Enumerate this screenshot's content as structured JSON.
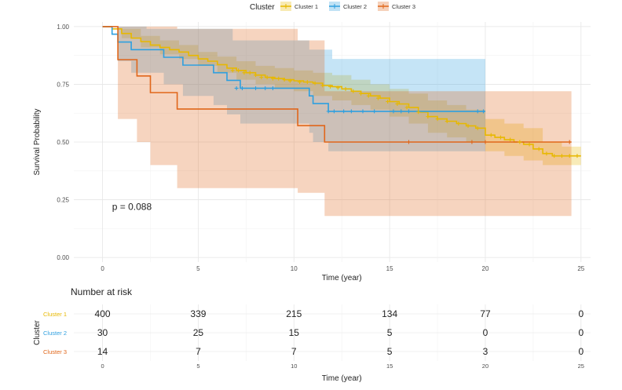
{
  "chart_data": {
    "type": "line",
    "subtype": "kaplan-meier",
    "legend": {
      "title": "Cluster",
      "placement": "top",
      "entries": [
        "Cluster 1",
        "Cluster 2",
        "Cluster 3"
      ]
    },
    "xlabel": "Time (year)",
    "ylabel": "Survival Probability",
    "xlim": [
      -1.5,
      25.5
    ],
    "ylim": [
      -0.02,
      1.02
    ],
    "x_ticks": [
      "0",
      "5",
      "10",
      "15",
      "20",
      "25"
    ],
    "y_ticks": [
      "0.00",
      "0.25",
      "0.50",
      "0.75",
      "1.00"
    ],
    "annotation": "p = 0.088",
    "colors": {
      "Cluster 1": "#E7B800",
      "Cluster 2": "#2E9FDF",
      "Cluster 3": "#E0661A"
    },
    "series": [
      {
        "name": "Cluster 1",
        "steps": [
          [
            0,
            1.0
          ],
          [
            0.5,
            0.99
          ],
          [
            1.0,
            0.97
          ],
          [
            1.5,
            0.95
          ],
          [
            2.0,
            0.935
          ],
          [
            2.5,
            0.92
          ],
          [
            3.0,
            0.91
          ],
          [
            3.5,
            0.9
          ],
          [
            4.0,
            0.89
          ],
          [
            4.5,
            0.875
          ],
          [
            5.0,
            0.86
          ],
          [
            5.5,
            0.85
          ],
          [
            6.0,
            0.835
          ],
          [
            6.5,
            0.82
          ],
          [
            7.0,
            0.81
          ],
          [
            7.5,
            0.8
          ],
          [
            8.0,
            0.79
          ],
          [
            8.5,
            0.78
          ],
          [
            9.0,
            0.775
          ],
          [
            9.5,
            0.77
          ],
          [
            10.0,
            0.765
          ],
          [
            10.5,
            0.76
          ],
          [
            11.0,
            0.755
          ],
          [
            11.5,
            0.745
          ],
          [
            12.0,
            0.74
          ],
          [
            12.5,
            0.73
          ],
          [
            13.0,
            0.72
          ],
          [
            13.5,
            0.71
          ],
          [
            14.0,
            0.7
          ],
          [
            14.5,
            0.69
          ],
          [
            15.0,
            0.675
          ],
          [
            15.5,
            0.665
          ],
          [
            16.0,
            0.65
          ],
          [
            16.5,
            0.63
          ],
          [
            17.0,
            0.61
          ],
          [
            17.5,
            0.6
          ],
          [
            18.0,
            0.59
          ],
          [
            18.5,
            0.58
          ],
          [
            19.0,
            0.57
          ],
          [
            19.5,
            0.56
          ],
          [
            20.0,
            0.53
          ],
          [
            20.5,
            0.52
          ],
          [
            21.0,
            0.51
          ],
          [
            21.5,
            0.5
          ],
          [
            22.0,
            0.49
          ],
          [
            22.5,
            0.47
          ],
          [
            23.0,
            0.45
          ],
          [
            23.5,
            0.44
          ],
          [
            24.0,
            0.44
          ],
          [
            25.0,
            0.44
          ]
        ],
        "ci_lower": [
          [
            0,
            1.0
          ],
          [
            1.0,
            0.95
          ],
          [
            2.0,
            0.91
          ],
          [
            3.0,
            0.88
          ],
          [
            4.0,
            0.86
          ],
          [
            5.0,
            0.83
          ],
          [
            6.0,
            0.8
          ],
          [
            7.0,
            0.77
          ],
          [
            8.0,
            0.75
          ],
          [
            9.0,
            0.73
          ],
          [
            10.0,
            0.72
          ],
          [
            11.0,
            0.7
          ],
          [
            12.0,
            0.68
          ],
          [
            13.0,
            0.66
          ],
          [
            14.0,
            0.64
          ],
          [
            15.0,
            0.61
          ],
          [
            16.0,
            0.58
          ],
          [
            17.0,
            0.54
          ],
          [
            18.0,
            0.52
          ],
          [
            19.0,
            0.5
          ],
          [
            20.0,
            0.46
          ],
          [
            21.0,
            0.44
          ],
          [
            22.0,
            0.42
          ],
          [
            23.0,
            0.4
          ],
          [
            24.0,
            0.4
          ],
          [
            25.0,
            0.4
          ]
        ],
        "ci_upper": [
          [
            0,
            1.0
          ],
          [
            1.0,
            0.99
          ],
          [
            2.0,
            0.96
          ],
          [
            3.0,
            0.94
          ],
          [
            4.0,
            0.92
          ],
          [
            5.0,
            0.89
          ],
          [
            6.0,
            0.87
          ],
          [
            7.0,
            0.85
          ],
          [
            8.0,
            0.83
          ],
          [
            9.0,
            0.82
          ],
          [
            10.0,
            0.81
          ],
          [
            11.0,
            0.8
          ],
          [
            12.0,
            0.79
          ],
          [
            13.0,
            0.77
          ],
          [
            14.0,
            0.75
          ],
          [
            15.0,
            0.73
          ],
          [
            16.0,
            0.71
          ],
          [
            17.0,
            0.68
          ],
          [
            18.0,
            0.66
          ],
          [
            19.0,
            0.64
          ],
          [
            20.0,
            0.6
          ],
          [
            21.0,
            0.58
          ],
          [
            22.0,
            0.56
          ],
          [
            23.0,
            0.5
          ],
          [
            24.0,
            0.48
          ],
          [
            25.0,
            0.48
          ]
        ],
        "censored": [
          [
            6.8,
            0.81
          ],
          [
            7.1,
            0.81
          ],
          [
            7.4,
            0.8
          ],
          [
            7.7,
            0.8
          ],
          [
            8.0,
            0.79
          ],
          [
            8.3,
            0.78
          ],
          [
            8.6,
            0.78
          ],
          [
            8.9,
            0.775
          ],
          [
            9.2,
            0.775
          ],
          [
            9.5,
            0.77
          ],
          [
            9.8,
            0.765
          ],
          [
            10.3,
            0.76
          ],
          [
            10.7,
            0.76
          ],
          [
            11.1,
            0.755
          ],
          [
            11.5,
            0.745
          ],
          [
            11.9,
            0.74
          ],
          [
            12.3,
            0.735
          ],
          [
            12.7,
            0.73
          ],
          [
            13.1,
            0.72
          ],
          [
            13.5,
            0.71
          ],
          [
            13.9,
            0.7
          ],
          [
            14.4,
            0.69
          ],
          [
            14.9,
            0.675
          ],
          [
            15.4,
            0.665
          ],
          [
            15.9,
            0.65
          ],
          [
            16.5,
            0.63
          ],
          [
            17.0,
            0.61
          ],
          [
            17.5,
            0.6
          ],
          [
            18.0,
            0.59
          ],
          [
            18.6,
            0.58
          ],
          [
            19.1,
            0.57
          ],
          [
            19.6,
            0.56
          ],
          [
            20.3,
            0.53
          ],
          [
            20.8,
            0.52
          ],
          [
            21.3,
            0.51
          ],
          [
            21.8,
            0.5
          ],
          [
            22.3,
            0.49
          ],
          [
            22.8,
            0.47
          ],
          [
            23.2,
            0.45
          ],
          [
            23.6,
            0.44
          ],
          [
            24.0,
            0.44
          ],
          [
            24.4,
            0.44
          ],
          [
            24.8,
            0.44
          ]
        ]
      },
      {
        "name": "Cluster 2",
        "steps": [
          [
            0,
            1.0
          ],
          [
            0.5,
            0.967
          ],
          [
            0.8,
            0.933
          ],
          [
            1.5,
            0.9
          ],
          [
            3.2,
            0.867
          ],
          [
            4.2,
            0.833
          ],
          [
            5.8,
            0.8
          ],
          [
            6.5,
            0.767
          ],
          [
            7.2,
            0.733
          ],
          [
            10.8,
            0.7
          ],
          [
            11.0,
            0.667
          ],
          [
            11.8,
            0.633
          ],
          [
            20.0,
            0.633
          ]
        ],
        "ci_lower": [
          [
            0,
            1.0
          ],
          [
            0.8,
            0.85
          ],
          [
            1.5,
            0.8
          ],
          [
            3.2,
            0.75
          ],
          [
            4.2,
            0.7
          ],
          [
            5.8,
            0.66
          ],
          [
            6.5,
            0.62
          ],
          [
            7.2,
            0.58
          ],
          [
            10.8,
            0.54
          ],
          [
            11.0,
            0.5
          ],
          [
            11.8,
            0.46
          ],
          [
            20.0,
            0.46
          ]
        ],
        "ci_upper": [
          [
            0,
            1.0
          ],
          [
            2.3,
            0.99
          ],
          [
            5.2,
            0.99
          ],
          [
            6.8,
            0.94
          ],
          [
            10.8,
            0.9
          ],
          [
            12.0,
            0.86
          ],
          [
            20.0,
            0.86
          ]
        ],
        "censored": [
          [
            7.0,
            0.733
          ],
          [
            7.3,
            0.733
          ],
          [
            8.0,
            0.733
          ],
          [
            8.5,
            0.733
          ],
          [
            8.9,
            0.733
          ],
          [
            11.8,
            0.633
          ],
          [
            12.1,
            0.633
          ],
          [
            12.6,
            0.633
          ],
          [
            13.0,
            0.633
          ],
          [
            13.6,
            0.633
          ],
          [
            14.2,
            0.633
          ],
          [
            15.2,
            0.633
          ],
          [
            15.6,
            0.633
          ],
          [
            16.0,
            0.633
          ],
          [
            19.6,
            0.633
          ],
          [
            19.9,
            0.633
          ]
        ]
      },
      {
        "name": "Cluster 3",
        "steps": [
          [
            0,
            1.0
          ],
          [
            0.8,
            0.857
          ],
          [
            1.8,
            0.786
          ],
          [
            2.5,
            0.714
          ],
          [
            3.9,
            0.643
          ],
          [
            10.2,
            0.571
          ],
          [
            11.6,
            0.5
          ],
          [
            24.5,
            0.5
          ]
        ],
        "ci_lower": [
          [
            0,
            1.0
          ],
          [
            0.8,
            0.6
          ],
          [
            1.8,
            0.5
          ],
          [
            2.5,
            0.4
          ],
          [
            3.9,
            0.3
          ],
          [
            10.2,
            0.28
          ],
          [
            11.6,
            0.18
          ],
          [
            24.5,
            0.18
          ]
        ],
        "ci_upper": [
          [
            0,
            1.0
          ],
          [
            2.5,
            1.0
          ],
          [
            3.9,
            0.99
          ],
          [
            10.2,
            0.94
          ],
          [
            11.6,
            0.72
          ],
          [
            24.5,
            0.72
          ]
        ],
        "censored": [
          [
            16.0,
            0.5
          ],
          [
            19.3,
            0.5
          ],
          [
            20.0,
            0.5
          ],
          [
            24.4,
            0.5
          ]
        ]
      }
    ],
    "risk_table": {
      "title": "Number at risk",
      "ylabel": "Cluster",
      "xlabel": "Time (year)",
      "times": [
        0,
        5,
        10,
        15,
        20,
        25
      ],
      "time_labels": [
        "0",
        "5",
        "10",
        "15",
        "20",
        "25"
      ],
      "rows": [
        {
          "label": "Cluster 1",
          "values": [
            "400",
            "339",
            "215",
            "134",
            "77",
            "0"
          ]
        },
        {
          "label": "Cluster 2",
          "values": [
            "30",
            "25",
            "15",
            "5",
            "0",
            "0"
          ]
        },
        {
          "label": "Cluster 3",
          "values": [
            "14",
            "7",
            "7",
            "5",
            "3",
            "0"
          ]
        }
      ]
    }
  }
}
